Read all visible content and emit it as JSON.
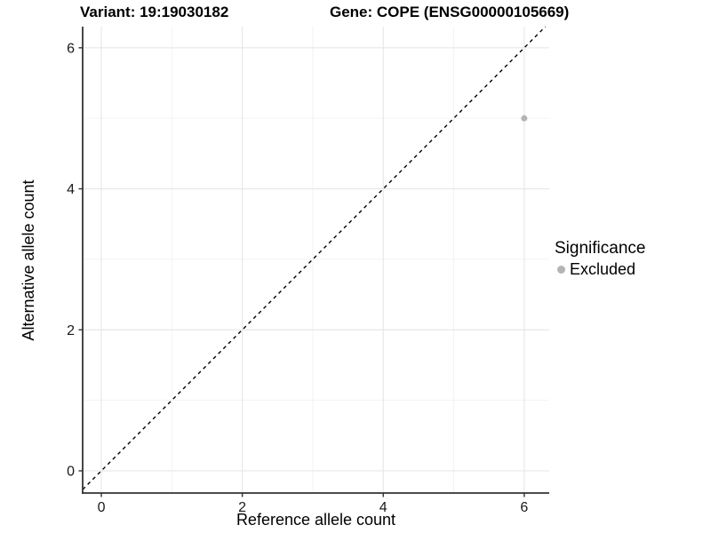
{
  "figure": {
    "title_left": "Variant: 19:19030182",
    "title_right": "Gene: COPE (ENSG00000105669)"
  },
  "legend": {
    "title": "Significance",
    "items": [
      {
        "label": "Excluded",
        "color": "#b4b4b4"
      }
    ]
  },
  "chart_data": {
    "type": "scatter",
    "title": "Variant: 19:19030182   Gene: COPE (ENSG00000105669)",
    "xlabel": "Reference allele count",
    "ylabel": "Alternative allele count",
    "xlim": [
      -0.265,
      6.355
    ],
    "ylim": [
      -0.315,
      6.3
    ],
    "x_ticks": [
      0,
      2,
      4,
      6
    ],
    "y_ticks": [
      0,
      2,
      4,
      6
    ],
    "x_minor_ticks": [
      1,
      3,
      5
    ],
    "y_minor_ticks": [
      1,
      3,
      5
    ],
    "grid": "major-and-minor",
    "legend_position": "right",
    "series": [
      {
        "name": "Excluded",
        "color": "#b4b4b4",
        "points": [
          {
            "x": 6,
            "y": 5
          }
        ]
      }
    ],
    "reference_line": {
      "slope": 1,
      "intercept": 0,
      "style": "dashed",
      "color": "#000000"
    }
  },
  "style": {
    "background": "#ffffff",
    "grid_major": "#e6e6e6",
    "grid_minor": "#f2f2f2",
    "axis_line": "#333333",
    "tick_color": "#333333",
    "tick_label_color": "#1a1a1a",
    "point_color": "#b4b4b4"
  }
}
